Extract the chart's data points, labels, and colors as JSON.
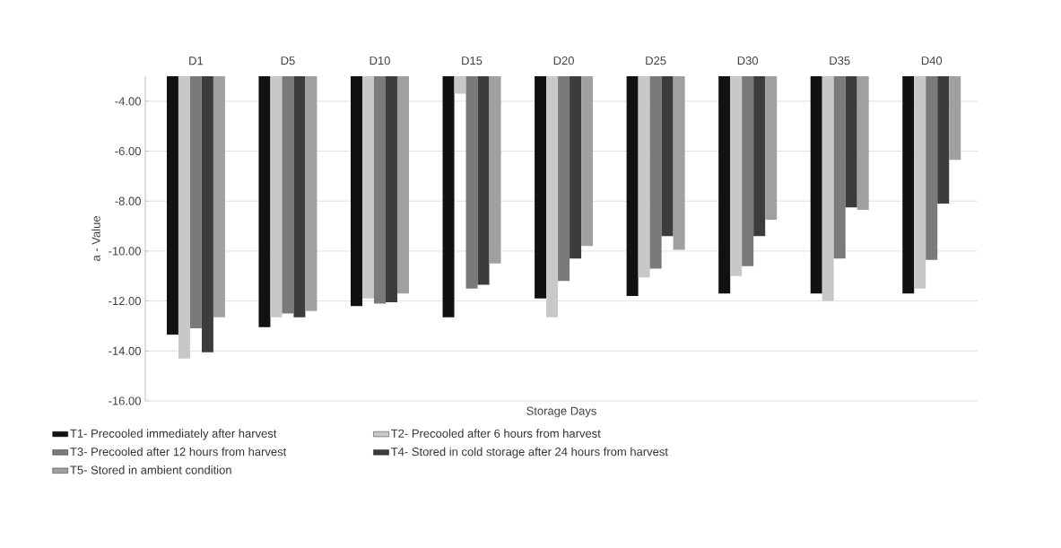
{
  "chart_data": {
    "type": "bar",
    "xlabel": "Storage Days",
    "ylabel": "a - Value",
    "categories": [
      "D1",
      "D5",
      "D10",
      "D15",
      "D20",
      "D25",
      "D30",
      "D35",
      "D40"
    ],
    "series": [
      {
        "name": "T1- Precooled immediately after harvest",
        "color": "#111111",
        "values": [
          -13.35,
          -13.05,
          -12.2,
          -12.65,
          -11.9,
          -11.8,
          -11.7,
          -11.7,
          -11.7
        ]
      },
      {
        "name": "T2- Precooled after 6 hours from harvest",
        "color": "#c8c8c8",
        "values": [
          -14.3,
          -12.65,
          -11.9,
          -3.7,
          -12.65,
          -11.05,
          -11.0,
          -12.0,
          -11.5
        ]
      },
      {
        "name": "T3- Precooled after 12 hours from harvest",
        "color": "#7a7a7a",
        "values": [
          -13.1,
          -12.5,
          -12.1,
          -11.5,
          -11.2,
          -10.7,
          -10.6,
          -10.3,
          -10.35
        ]
      },
      {
        "name": "T4- Stored in cold storage after 24 hours from harvest",
        "color": "#3c3c3c",
        "values": [
          -14.05,
          -12.65,
          -12.05,
          -11.35,
          -10.3,
          -9.4,
          -9.4,
          -8.25,
          -8.1
        ]
      },
      {
        "name": "T5- Stored in ambient condition",
        "color": "#a0a0a0",
        "values": [
          -12.65,
          -12.4,
          -11.7,
          -10.5,
          -9.8,
          -9.95,
          -8.75,
          -8.35,
          -6.35
        ]
      }
    ],
    "ylim": [
      -16,
      -3
    ],
    "yticks": [
      {
        "value": -4,
        "label": "-4.00"
      },
      {
        "value": -6,
        "label": "-6.00"
      },
      {
        "value": -8,
        "label": "-8.00"
      },
      {
        "value": -10,
        "label": "-10.00"
      },
      {
        "value": -12,
        "label": "-12.00"
      },
      {
        "value": -14,
        "label": "-14.00"
      },
      {
        "value": -16,
        "label": "-16.00"
      }
    ],
    "grid": "y",
    "legend": "bottom"
  }
}
